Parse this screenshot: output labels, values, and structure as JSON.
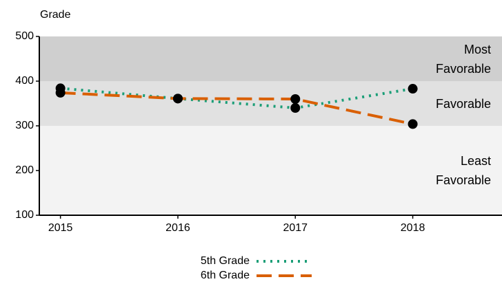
{
  "chart_data": {
    "type": "line",
    "y_label": "Grade",
    "x": [
      2015,
      2016,
      2017,
      2018
    ],
    "xlim": [
      2014.82,
      2018.76
    ],
    "xticks": [
      2015,
      2016,
      2017,
      2018
    ],
    "ylim": [
      100,
      500
    ],
    "yticks": [
      100,
      200,
      300,
      400,
      500
    ],
    "bands": [
      {
        "from": 400,
        "to": 500,
        "label": "Most Favorable",
        "color": "#cfcfcf"
      },
      {
        "from": 300,
        "to": 400,
        "label": "Favorable",
        "color": "#e1e1e1"
      },
      {
        "from": 100,
        "to": 300,
        "label": "Least Favorable",
        "color": "#f3f3f3"
      }
    ],
    "series": [
      {
        "name": "5th Grade",
        "color": "#1b9e77",
        "dash": "3 7",
        "values": [
          384,
          361,
          340,
          383
        ]
      },
      {
        "name": "6th Grade",
        "color": "#d95f02",
        "dash": "22 10",
        "values": [
          374,
          361,
          360,
          304
        ]
      }
    ]
  }
}
